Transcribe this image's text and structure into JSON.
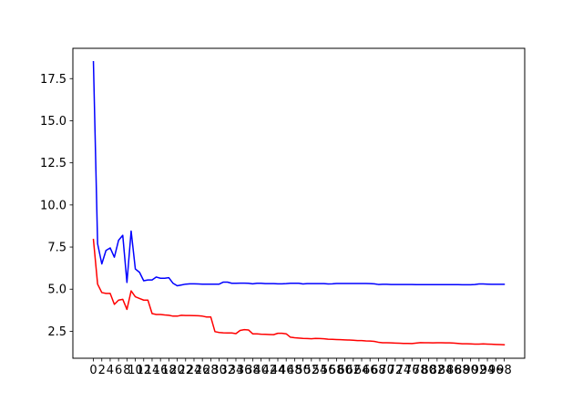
{
  "chart_data": {
    "type": "line",
    "title": "",
    "xlabel": "",
    "ylabel": "",
    "xlim": [
      -4.9,
      102.9
    ],
    "ylim": [
      0.9,
      19.3
    ],
    "x_ticks": [
      0,
      2,
      4,
      6,
      8,
      10,
      12,
      14,
      16,
      18,
      20,
      22,
      24,
      26,
      28,
      30,
      32,
      34,
      36,
      38,
      40,
      42,
      44,
      46,
      48,
      50,
      52,
      54,
      56,
      58,
      60,
      62,
      64,
      66,
      68,
      70,
      72,
      74,
      76,
      78,
      80,
      82,
      84,
      86,
      88,
      90,
      92,
      94,
      96,
      98
    ],
    "y_ticks": [
      2.5,
      5.0,
      7.5,
      10.0,
      12.5,
      15.0,
      17.5
    ],
    "y_tick_labels": [
      "2.5",
      "5.0",
      "7.5",
      "10.0",
      "12.5",
      "15.0",
      "17.5"
    ],
    "grid": false,
    "legend": "none",
    "series": [
      {
        "color": "#0000ff",
        "values": [
          18.5,
          7.7,
          6.5,
          7.3,
          7.45,
          6.9,
          7.9,
          8.2,
          5.4,
          8.45,
          6.2,
          6.0,
          5.5,
          5.55,
          5.55,
          5.72,
          5.65,
          5.65,
          5.68,
          5.35,
          5.2,
          5.25,
          5.3,
          5.32,
          5.32,
          5.31,
          5.3,
          5.3,
          5.3,
          5.3,
          5.3,
          5.42,
          5.42,
          5.35,
          5.35,
          5.36,
          5.36,
          5.35,
          5.32,
          5.35,
          5.35,
          5.33,
          5.33,
          5.33,
          5.32,
          5.32,
          5.33,
          5.35,
          5.35,
          5.35,
          5.31,
          5.33,
          5.33,
          5.33,
          5.33,
          5.33,
          5.31,
          5.32,
          5.34,
          5.34,
          5.34,
          5.34,
          5.34,
          5.34,
          5.34,
          5.34,
          5.33,
          5.32,
          5.28,
          5.29,
          5.29,
          5.28,
          5.28,
          5.28,
          5.28,
          5.28,
          5.28,
          5.27,
          5.27,
          5.27,
          5.27,
          5.27,
          5.27,
          5.27,
          5.27,
          5.27,
          5.27,
          5.27,
          5.26,
          5.26,
          5.26,
          5.28,
          5.31,
          5.31,
          5.3,
          5.29,
          5.29,
          5.29,
          5.29
        ]
      },
      {
        "color": "#ff0000",
        "values": [
          7.95,
          5.3,
          4.8,
          4.75,
          4.75,
          4.1,
          4.35,
          4.4,
          3.8,
          4.9,
          4.55,
          4.45,
          4.35,
          4.35,
          3.55,
          3.5,
          3.5,
          3.47,
          3.45,
          3.4,
          3.4,
          3.45,
          3.44,
          3.44,
          3.43,
          3.42,
          3.4,
          3.35,
          3.35,
          2.48,
          2.43,
          2.41,
          2.4,
          2.4,
          2.36,
          2.55,
          2.6,
          2.58,
          2.35,
          2.35,
          2.33,
          2.32,
          2.31,
          2.3,
          2.38,
          2.38,
          2.35,
          2.15,
          2.12,
          2.1,
          2.08,
          2.07,
          2.06,
          2.08,
          2.07,
          2.06,
          2.03,
          2.02,
          2.01,
          2.0,
          1.99,
          1.98,
          1.97,
          1.95,
          1.95,
          1.93,
          1.92,
          1.9,
          1.85,
          1.82,
          1.82,
          1.81,
          1.8,
          1.79,
          1.78,
          1.78,
          1.77,
          1.8,
          1.83,
          1.82,
          1.82,
          1.81,
          1.82,
          1.82,
          1.81,
          1.81,
          1.8,
          1.78,
          1.76,
          1.76,
          1.75,
          1.74,
          1.74,
          1.75,
          1.74,
          1.73,
          1.72,
          1.71,
          1.7
        ]
      }
    ]
  }
}
